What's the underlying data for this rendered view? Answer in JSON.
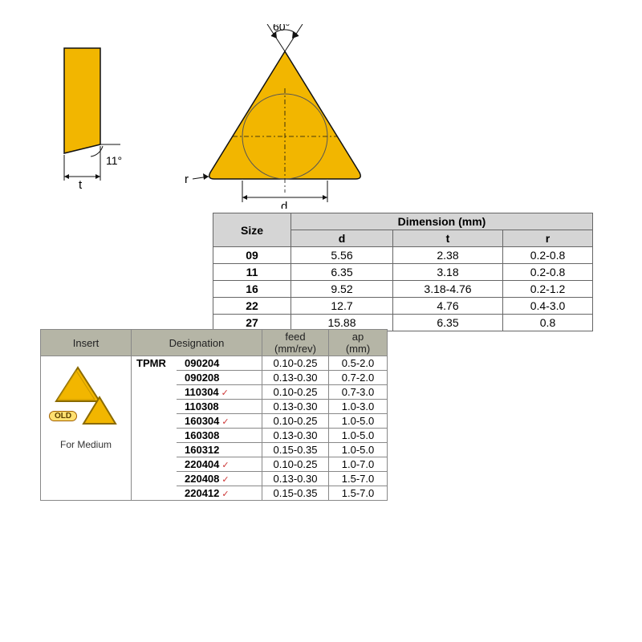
{
  "diagrams": {
    "side_angle_label": "11°",
    "side_dim_label": "t",
    "top_angle_label": "60°",
    "top_dim_d": "d",
    "top_dim_r": "r",
    "shape_fill": "#f2b600",
    "shape_stroke": "#1a1a1a",
    "inscribed_circle_stroke": "#555555"
  },
  "size_table": {
    "header_bg": "#d5d5d5",
    "size_label": "Size",
    "dim_label": "Dimension (mm)",
    "cols": {
      "d": "d",
      "t": "t",
      "r": "r"
    },
    "rows": [
      {
        "size": "09",
        "d": "5.56",
        "t": "2.38",
        "r": "0.2-0.8"
      },
      {
        "size": "11",
        "d": "6.35",
        "t": "3.18",
        "r": "0.2-0.8"
      },
      {
        "size": "16",
        "d": "9.52",
        "t": "3.18-4.76",
        "r": "0.2-1.2"
      },
      {
        "size": "22",
        "d": "12.7",
        "t": "4.76",
        "r": "0.4-3.0"
      },
      {
        "size": "27",
        "d": "15.88",
        "t": "6.35",
        "r": "0.8"
      }
    ]
  },
  "insert_table": {
    "header_bg": "#b5b5a6",
    "headers": {
      "insert": "Insert",
      "designation": "Designation",
      "feed": "feed\n(mm/rev)",
      "ap": "ap\n(mm)"
    },
    "insert_badge": "OLD",
    "insert_caption": "For Medium",
    "type_code": "TPMR",
    "rows": [
      {
        "code": "090204",
        "check": false,
        "feed": "0.10-0.25",
        "ap": "0.5-2.0"
      },
      {
        "code": "090208",
        "check": false,
        "feed": "0.13-0.30",
        "ap": "0.7-2.0"
      },
      {
        "code": "110304",
        "check": true,
        "feed": "0.10-0.25",
        "ap": "0.7-3.0"
      },
      {
        "code": "110308",
        "check": false,
        "feed": "0.13-0.30",
        "ap": "1.0-3.0"
      },
      {
        "code": "160304",
        "check": true,
        "feed": "0.10-0.25",
        "ap": "1.0-5.0"
      },
      {
        "code": "160308",
        "check": false,
        "feed": "0.13-0.30",
        "ap": "1.0-5.0"
      },
      {
        "code": "160312",
        "check": false,
        "feed": "0.15-0.35",
        "ap": "1.0-5.0"
      },
      {
        "code": "220404",
        "check": true,
        "feed": "0.10-0.25",
        "ap": "1.0-7.0"
      },
      {
        "code": "220408",
        "check": true,
        "feed": "0.13-0.30",
        "ap": "1.5-7.0"
      },
      {
        "code": "220412",
        "check": true,
        "feed": "0.15-0.35",
        "ap": "1.5-7.0"
      }
    ]
  }
}
